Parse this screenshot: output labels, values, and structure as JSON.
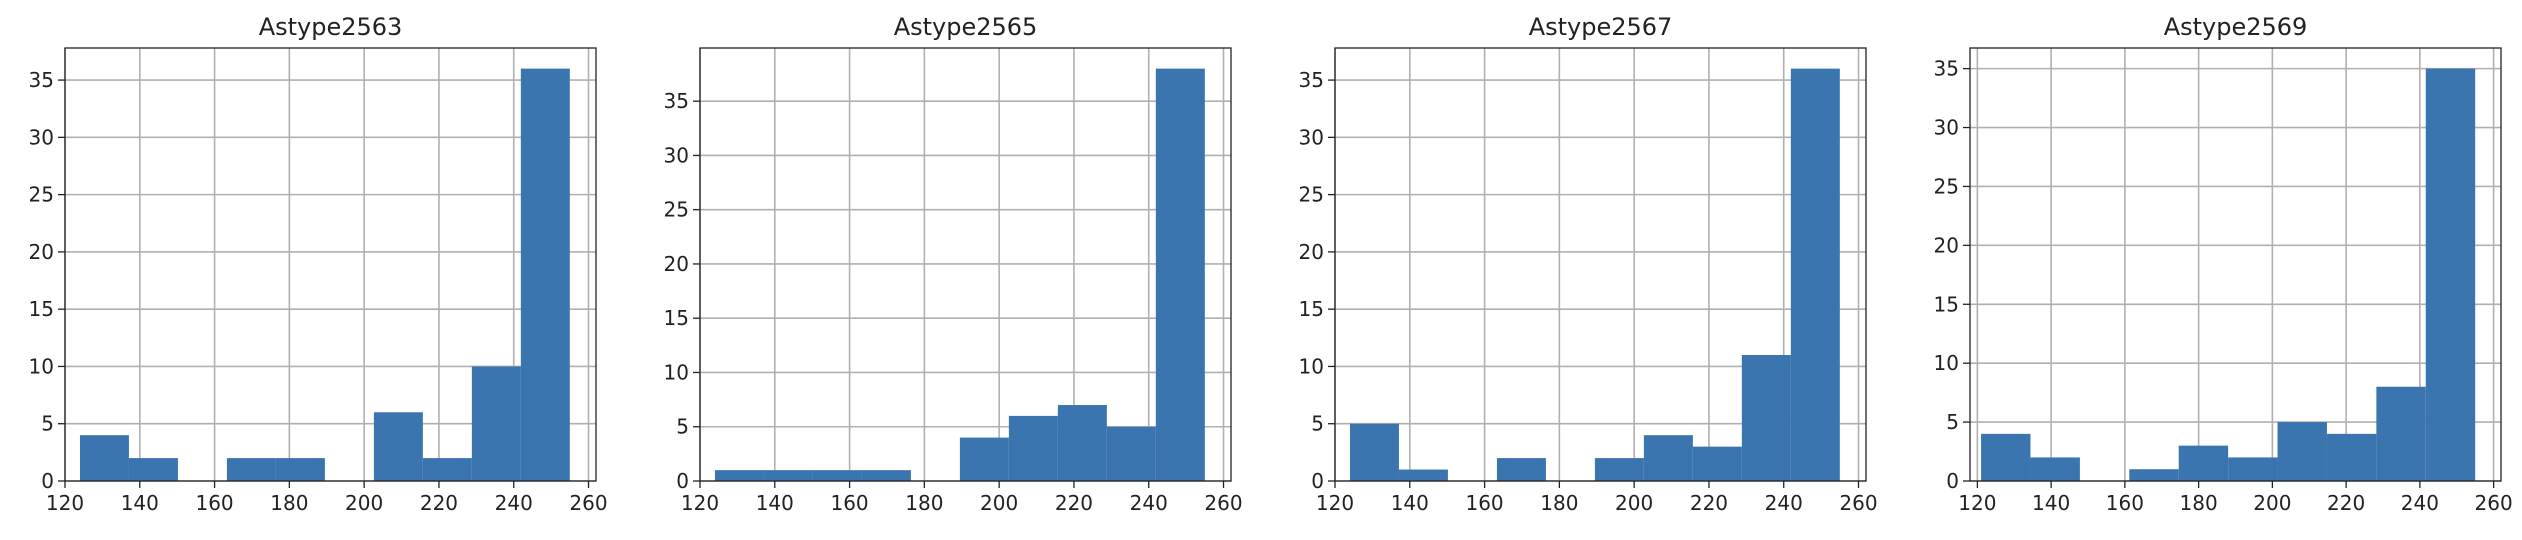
{
  "chart_data": [
    {
      "type": "bar",
      "title": "Astype2563",
      "xlim": [
        120,
        262
      ],
      "ylim": [
        0,
        37.8
      ],
      "xticks": [
        120,
        140,
        160,
        180,
        200,
        220,
        240,
        260
      ],
      "yticks": [
        0,
        5,
        10,
        15,
        20,
        25,
        30,
        35
      ],
      "grid": true,
      "bin_edges": [
        124,
        137.1,
        150.2,
        163.3,
        176.4,
        189.5,
        202.6,
        215.7,
        228.8,
        241.9,
        255
      ],
      "values": [
        4,
        2,
        0,
        2,
        2,
        0,
        6,
        2,
        10,
        36
      ],
      "color": "#3a75b0"
    },
    {
      "type": "bar",
      "title": "Astype2565",
      "xlim": [
        120,
        262
      ],
      "ylim": [
        0,
        39.9
      ],
      "xticks": [
        120,
        140,
        160,
        180,
        200,
        220,
        240,
        260
      ],
      "yticks": [
        0,
        5,
        10,
        15,
        20,
        25,
        30,
        35
      ],
      "grid": true,
      "bin_edges": [
        124,
        137.1,
        150.2,
        163.3,
        176.4,
        189.5,
        202.6,
        215.7,
        228.8,
        241.9,
        255
      ],
      "values": [
        1,
        1,
        1,
        1,
        0,
        4,
        6,
        7,
        5,
        38
      ],
      "color": "#3a75b0"
    },
    {
      "type": "bar",
      "title": "Astype2567",
      "xlim": [
        120,
        262
      ],
      "ylim": [
        0,
        37.8
      ],
      "xticks": [
        120,
        140,
        160,
        180,
        200,
        220,
        240,
        260
      ],
      "yticks": [
        0,
        5,
        10,
        15,
        20,
        25,
        30,
        35
      ],
      "grid": true,
      "bin_edges": [
        124,
        137.1,
        150.2,
        163.3,
        176.4,
        189.5,
        202.6,
        215.7,
        228.8,
        241.9,
        255
      ],
      "values": [
        5,
        1,
        0,
        2,
        0,
        2,
        4,
        3,
        11,
        36
      ],
      "color": "#3a75b0"
    },
    {
      "type": "bar",
      "title": "Astype2569",
      "xlim": [
        118,
        262
      ],
      "ylim": [
        0,
        36.75
      ],
      "xticks": [
        120,
        140,
        160,
        180,
        200,
        220,
        240,
        260
      ],
      "yticks": [
        0,
        5,
        10,
        15,
        20,
        25,
        30,
        35
      ],
      "grid": true,
      "bin_edges": [
        121,
        134.4,
        147.8,
        161.2,
        174.6,
        188,
        201.4,
        214.8,
        228.2,
        241.6,
        255
      ],
      "values": [
        4,
        2,
        0,
        1,
        3,
        2,
        5,
        4,
        8,
        35
      ],
      "color": "#3a75b0"
    }
  ]
}
